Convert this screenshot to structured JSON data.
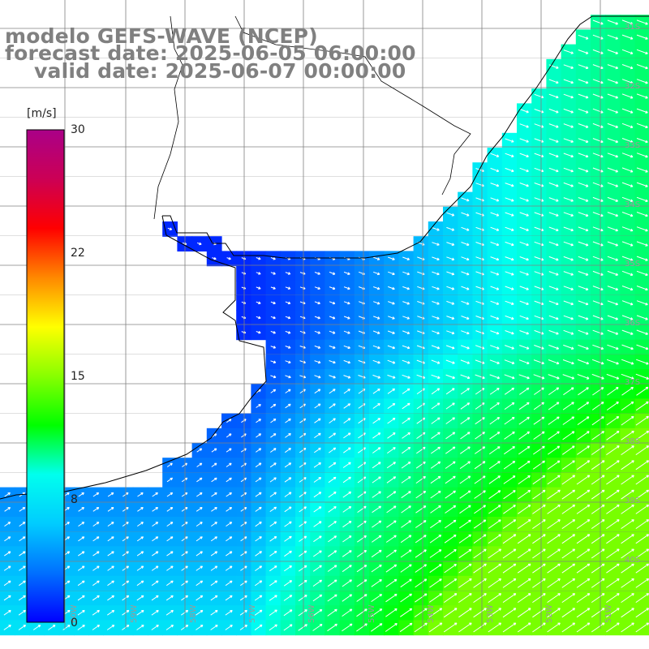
{
  "title": {
    "model": "modelo GEFS-WAVE (NCEP)",
    "forecast": "forecast date: 2025-06-05 06:00:00",
    "valid": "valid date: 2025-06-07 00:00:00"
  },
  "colorbar": {
    "unit": "[m/s]",
    "ticks": [
      "30",
      "22",
      "15",
      "8",
      "0"
    ],
    "range": [
      0,
      30
    ],
    "colors": [
      "#0000ff",
      "#0070ff",
      "#00ccff",
      "#00ffee",
      "#00ff00",
      "#88ff00",
      "#ffff00",
      "#ff8800",
      "#ff0000",
      "#cc0055",
      "#aa0088"
    ]
  },
  "map": {
    "lat_labels": [
      "31S",
      "32S",
      "33S",
      "34S",
      "35S",
      "36S",
      "37S",
      "38S",
      "39S",
      "40S"
    ],
    "lon_labels": [
      "60W",
      "59W",
      "58W",
      "57W",
      "56W",
      "55W",
      "54W",
      "53W",
      "52W",
      "51W"
    ],
    "grid_color": "#808080",
    "coast_color": "#000000",
    "land_color": "#ffffff",
    "arrow_color": "#ffffff"
  }
}
